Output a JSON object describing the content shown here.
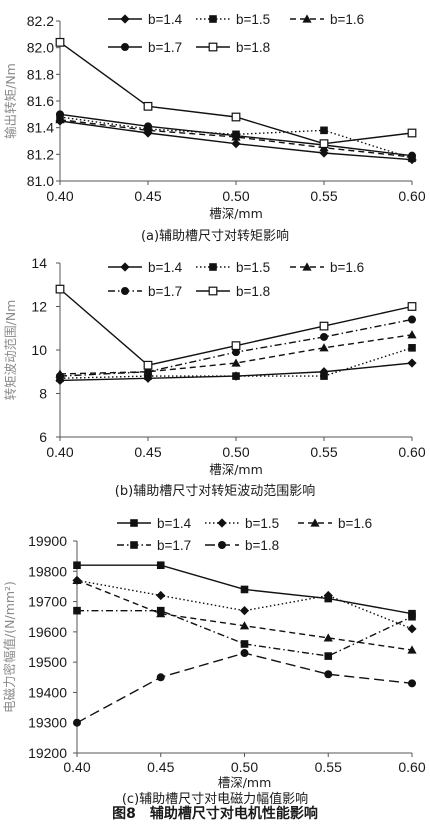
{
  "figure_caption": "图8　辅助槽尺寸对电机性能影响",
  "chart_data": [
    {
      "type": "line",
      "caption": "(a)辅助槽尺寸对转矩影响",
      "xlabel": "槽深/mm",
      "ylabel": "输出转矩/Nm",
      "x": [
        0.4,
        0.45,
        0.5,
        0.55,
        0.6
      ],
      "x_ticks": [
        "0.40",
        "0.45",
        "0.50",
        "0.55",
        "0.60"
      ],
      "ylim": [
        81.0,
        82.2
      ],
      "y_ticks": [
        "81.0",
        "81.2",
        "81.4",
        "81.6",
        "81.8",
        "82.0",
        "82.2"
      ],
      "grid": false,
      "legend": "top",
      "series": [
        {
          "name": "b=1.4",
          "values": [
            81.45,
            81.36,
            81.28,
            81.21,
            81.16
          ],
          "dash": "solid",
          "marker": "diamond"
        },
        {
          "name": "b=1.5",
          "values": [
            81.48,
            81.39,
            81.35,
            81.38,
            81.17
          ],
          "dash": "dotted",
          "marker": "square"
        },
        {
          "name": "b=1.6",
          "values": [
            81.46,
            81.38,
            81.33,
            81.25,
            81.18
          ],
          "dash": "dashed",
          "marker": "triangle"
        },
        {
          "name": "b=1.7",
          "values": [
            81.5,
            81.41,
            81.34,
            81.27,
            81.19
          ],
          "dash": "solid",
          "marker": "circle"
        },
        {
          "name": "b=1.8",
          "values": [
            82.04,
            81.56,
            81.48,
            81.28,
            81.36
          ],
          "dash": "solid",
          "marker": "open-square"
        }
      ]
    },
    {
      "type": "line",
      "caption": "(b)辅助槽尺寸对转矩波动范围影响",
      "xlabel": "槽深/mm",
      "ylabel": "转矩波动范围/Nm",
      "x": [
        0.4,
        0.45,
        0.5,
        0.55,
        0.6
      ],
      "x_ticks": [
        "0.40",
        "0.45",
        "0.50",
        "0.55",
        "0.60"
      ],
      "ylim": [
        6,
        14
      ],
      "y_ticks": [
        "6",
        "8",
        "10",
        "12",
        "14"
      ],
      "grid": false,
      "legend": "top",
      "series": [
        {
          "name": "b=1.4",
          "values": [
            8.6,
            8.7,
            8.8,
            9.0,
            9.4
          ],
          "dash": "solid",
          "marker": "diamond"
        },
        {
          "name": "b=1.5",
          "values": [
            8.7,
            8.8,
            8.8,
            8.8,
            10.1
          ],
          "dash": "dotted",
          "marker": "square"
        },
        {
          "name": "b=1.6",
          "values": [
            8.9,
            9.0,
            9.4,
            10.1,
            10.7
          ],
          "dash": "dashed",
          "marker": "triangle"
        },
        {
          "name": "b=1.7",
          "values": [
            8.8,
            9.0,
            9.9,
            10.6,
            11.4
          ],
          "dash": "dashdot",
          "marker": "circle"
        },
        {
          "name": "b=1.8",
          "values": [
            12.8,
            9.3,
            10.2,
            11.1,
            12.0
          ],
          "dash": "solid",
          "marker": "open-square"
        }
      ]
    },
    {
      "type": "line",
      "caption": "(c)辅助槽尺寸对电磁力幅值影响",
      "xlabel": "槽深/mm",
      "ylabel": "电磁力密幅值/(N/mm²)",
      "x": [
        0.4,
        0.45,
        0.5,
        0.55,
        0.6
      ],
      "x_ticks": [
        "0.40",
        "0.45",
        "0.50",
        "0.55",
        "0.60"
      ],
      "ylim": [
        19200,
        19900
      ],
      "y_ticks": [
        "19200",
        "19300",
        "19400",
        "19500",
        "19600",
        "19700",
        "19800",
        "19900"
      ],
      "grid": false,
      "legend": "top",
      "series": [
        {
          "name": "b=1.4",
          "values": [
            19820,
            19820,
            19740,
            19710,
            19660
          ],
          "dash": "solid",
          "marker": "square"
        },
        {
          "name": "b=1.5",
          "values": [
            19770,
            19720,
            19670,
            19720,
            19610
          ],
          "dash": "dotted",
          "marker": "diamond"
        },
        {
          "name": "b=1.6",
          "values": [
            19770,
            19660,
            19620,
            19580,
            19540
          ],
          "dash": "dashed",
          "marker": "triangle"
        },
        {
          "name": "b=1.7",
          "values": [
            19670,
            19670,
            19560,
            19520,
            19650
          ],
          "dash": "dashdot",
          "marker": "square"
        },
        {
          "name": "b=1.8",
          "values": [
            19300,
            19450,
            19530,
            19460,
            19430
          ],
          "dash": "longdash",
          "marker": "circle"
        }
      ]
    }
  ]
}
